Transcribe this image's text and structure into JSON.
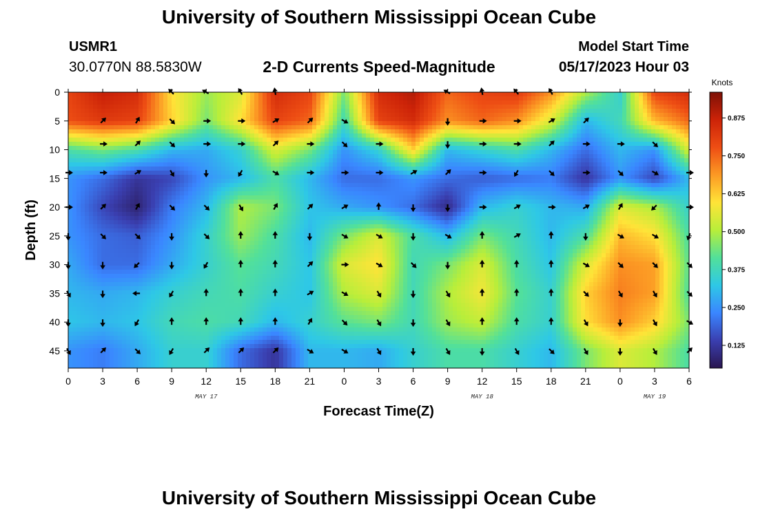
{
  "header": {
    "title": "University of Southern Mississippi Ocean Cube",
    "station_id": "USMR1",
    "station_coords": "30.0770N  88.5830W",
    "plot_title": "2-D Currents Speed-Magnitude",
    "model_start_label": "Model Start Time",
    "model_start_value": "05/17/2023 Hour 03"
  },
  "footer": {
    "title": "University of Southern Mississippi Ocean Cube"
  },
  "chart_data": {
    "type": "heatmap",
    "title": "2-D Currents Speed-Magnitude",
    "xlabel": "Forecast Time(Z)",
    "ylabel": "Depth (ft)",
    "x_tick_labels": [
      "0",
      "3",
      "6",
      "9",
      "12",
      "15",
      "18",
      "21",
      "0",
      "3",
      "6",
      "9",
      "12",
      "15",
      "18",
      "21",
      "0",
      "3",
      "6"
    ],
    "x_dates": [
      {
        "label": "MAY 17",
        "index": 4
      },
      {
        "label": "MAY 18",
        "index": 12
      },
      {
        "label": "MAY 19",
        "index": 17
      }
    ],
    "y_ticks": [
      0,
      5,
      10,
      15,
      20,
      25,
      30,
      35,
      40,
      45
    ],
    "ylim": [
      0,
      48
    ],
    "colorbar": {
      "unit": "Knots",
      "ticks": [
        "0.125",
        "0.250",
        "0.375",
        "0.500",
        "0.625",
        "0.750",
        "0.875"
      ],
      "range": [
        0.05,
        0.96
      ],
      "colors": [
        "#2a1650",
        "#3a3fb0",
        "#3a86ff",
        "#2ec8e6",
        "#52e09a",
        "#b8ee3a",
        "#ffe438",
        "#fc9a24",
        "#ee4e14",
        "#cc2308",
        "#7d1106"
      ]
    },
    "speed_field_depths_ft": [
      0,
      5,
      10,
      15,
      20,
      25,
      30,
      35,
      40,
      45
    ],
    "speed_field_knots": [
      [
        0.8,
        0.88,
        0.85,
        0.6,
        0.48,
        0.55,
        0.85,
        0.8,
        0.45,
        0.85,
        0.9,
        0.75,
        0.8,
        0.82,
        0.7,
        0.5,
        0.35,
        0.8,
        0.85
      ],
      [
        0.78,
        0.82,
        0.8,
        0.62,
        0.45,
        0.6,
        0.8,
        0.75,
        0.38,
        0.8,
        0.85,
        0.7,
        0.75,
        0.7,
        0.55,
        0.3,
        0.38,
        0.65,
        0.75
      ],
      [
        0.4,
        0.45,
        0.4,
        0.3,
        0.28,
        0.35,
        0.55,
        0.45,
        0.25,
        0.35,
        0.62,
        0.3,
        0.35,
        0.4,
        0.3,
        0.2,
        0.3,
        0.25,
        0.55
      ],
      [
        0.25,
        0.2,
        0.12,
        0.15,
        0.25,
        0.3,
        0.4,
        0.3,
        0.2,
        0.2,
        0.25,
        0.2,
        0.18,
        0.2,
        0.22,
        0.12,
        0.25,
        0.15,
        0.3
      ],
      [
        0.25,
        0.15,
        0.08,
        0.22,
        0.3,
        0.5,
        0.45,
        0.32,
        0.28,
        0.25,
        0.2,
        0.1,
        0.3,
        0.35,
        0.3,
        0.28,
        0.55,
        0.5,
        0.35
      ],
      [
        0.25,
        0.2,
        0.18,
        0.25,
        0.35,
        0.48,
        0.4,
        0.3,
        0.45,
        0.55,
        0.4,
        0.3,
        0.45,
        0.38,
        0.3,
        0.4,
        0.65,
        0.6,
        0.4
      ],
      [
        0.28,
        0.2,
        0.2,
        0.28,
        0.35,
        0.42,
        0.38,
        0.32,
        0.55,
        0.6,
        0.38,
        0.45,
        0.55,
        0.4,
        0.32,
        0.55,
        0.7,
        0.68,
        0.42
      ],
      [
        0.3,
        0.28,
        0.3,
        0.35,
        0.38,
        0.4,
        0.35,
        0.32,
        0.5,
        0.55,
        0.38,
        0.5,
        0.58,
        0.42,
        0.35,
        0.62,
        0.72,
        0.68,
        0.4
      ],
      [
        0.32,
        0.3,
        0.32,
        0.38,
        0.4,
        0.38,
        0.3,
        0.35,
        0.42,
        0.45,
        0.38,
        0.48,
        0.52,
        0.4,
        0.35,
        0.6,
        0.7,
        0.62,
        0.45
      ],
      [
        0.25,
        0.22,
        0.28,
        0.35,
        0.35,
        0.2,
        0.12,
        0.3,
        0.3,
        0.28,
        0.35,
        0.4,
        0.4,
        0.35,
        0.3,
        0.45,
        0.55,
        0.5,
        0.4
      ]
    ],
    "arrow_depths_ft": [
      0,
      5,
      9,
      14,
      20,
      25,
      30,
      35,
      40,
      45
    ],
    "arrow_direction_deg": [
      [
        null,
        null,
        null,
        315,
        300,
        330,
        350,
        null,
        null,
        null,
        null,
        300,
        350,
        320,
        330,
        null,
        null,
        null,
        null
      ],
      [
        null,
        45,
        30,
        135,
        90,
        90,
        60,
        45,
        120,
        null,
        null,
        180,
        90,
        90,
        60,
        45,
        null,
        null,
        null
      ],
      [
        null,
        90,
        45,
        135,
        90,
        90,
        45,
        90,
        135,
        90,
        null,
        180,
        90,
        90,
        45,
        90,
        90,
        135,
        null
      ],
      [
        90,
        90,
        60,
        150,
        180,
        210,
        120,
        90,
        90,
        90,
        60,
        45,
        90,
        210,
        135,
        90,
        135,
        120,
        90
      ],
      [
        90,
        45,
        30,
        135,
        135,
        150,
        30,
        45,
        60,
        0,
        180,
        180,
        90,
        60,
        90,
        60,
        30,
        225,
        90
      ],
      [
        180,
        135,
        135,
        180,
        135,
        0,
        0,
        180,
        120,
        120,
        180,
        120,
        0,
        60,
        0,
        180,
        120,
        120,
        200
      ],
      [
        180,
        180,
        225,
        180,
        210,
        0,
        0,
        45,
        90,
        120,
        135,
        180,
        0,
        0,
        0,
        120,
        135,
        135,
        135
      ],
      [
        150,
        180,
        270,
        210,
        0,
        0,
        0,
        60,
        120,
        150,
        180,
        150,
        0,
        0,
        0,
        135,
        150,
        150,
        135
      ],
      [
        180,
        180,
        210,
        0,
        0,
        0,
        0,
        30,
        135,
        150,
        180,
        150,
        0,
        0,
        0,
        150,
        180,
        150,
        120
      ],
      [
        150,
        45,
        135,
        210,
        45,
        45,
        45,
        120,
        120,
        150,
        180,
        150,
        180,
        150,
        135,
        150,
        180,
        150,
        45
      ]
    ]
  }
}
